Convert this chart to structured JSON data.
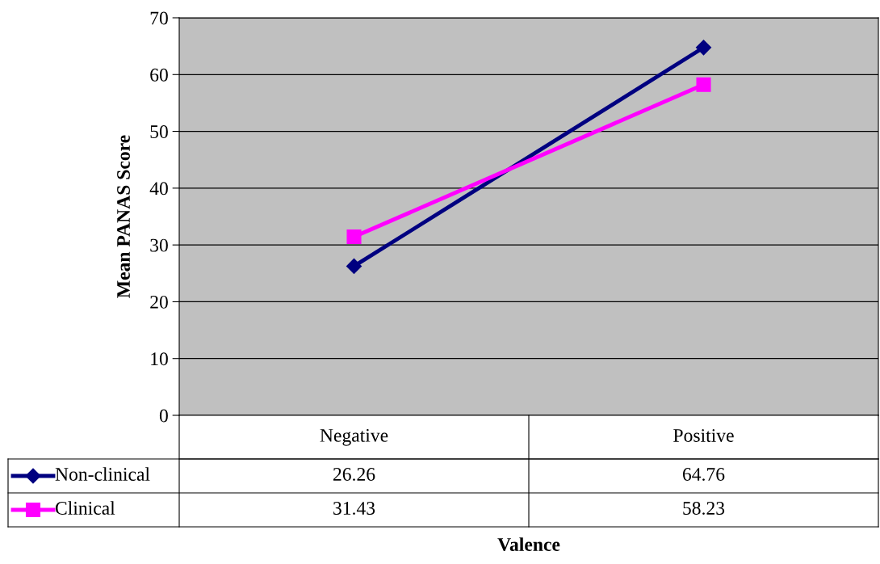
{
  "chart_data": {
    "type": "line",
    "xlabel": "Valence",
    "ylabel": "Mean PANAS Score",
    "categories": [
      "Negative",
      "Positive"
    ],
    "series": [
      {
        "name": "Non-clinical",
        "color": "#000080",
        "marker": "diamond",
        "values": [
          26.26,
          64.76
        ]
      },
      {
        "name": "Clinical",
        "color": "#ff00ff",
        "marker": "square",
        "values": [
          31.43,
          58.23
        ]
      }
    ],
    "ylim": [
      0,
      70
    ],
    "yticks": [
      0,
      10,
      20,
      30,
      40,
      50,
      60,
      70
    ],
    "grid": "y",
    "data_labels": true,
    "legend": "bottom left",
    "line_style": "solid"
  }
}
